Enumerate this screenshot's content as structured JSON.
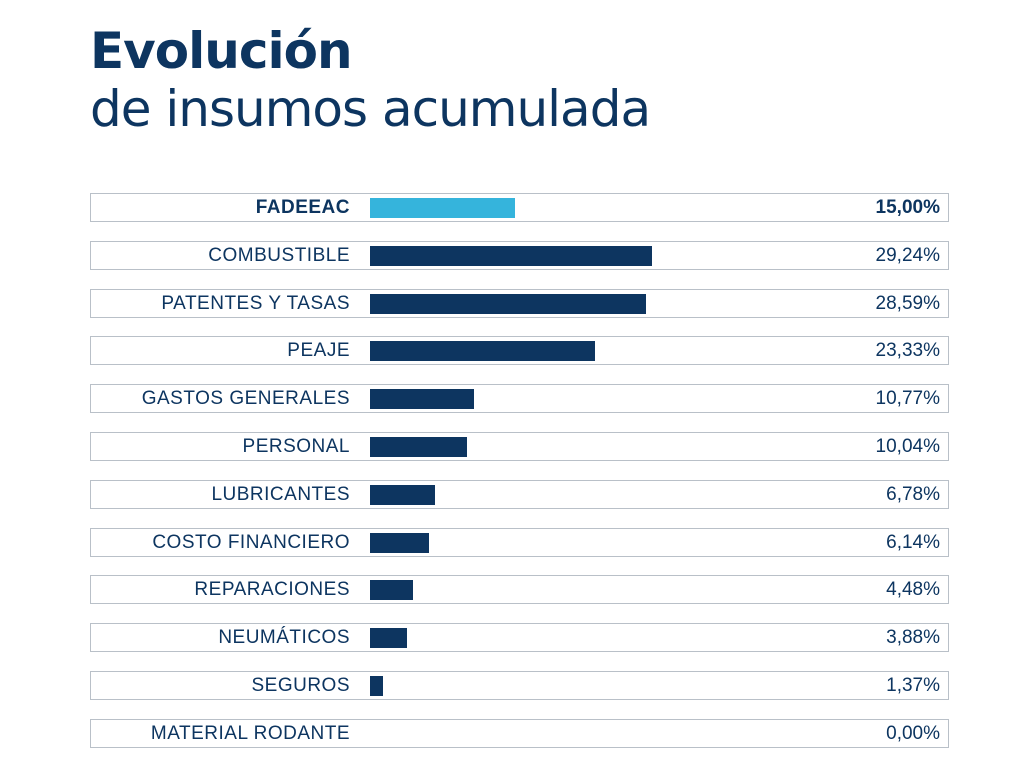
{
  "title": {
    "line1": "Evolución",
    "line2": "de insumos acumulada"
  },
  "chart_data": {
    "type": "bar",
    "orientation": "horizontal",
    "title": "Evolución de insumos acumulada",
    "categories": [
      "FADEEAC",
      "COMBUSTIBLE",
      "PATENTES Y TASAS",
      "PEAJE",
      "GASTOS GENERALES",
      "PERSONAL",
      "LUBRICANTES",
      "COSTO FINANCIERO",
      "REPARACIONES",
      "NEUMÁTICOS",
      "SEGUROS",
      "MATERIAL RODANTE"
    ],
    "values": [
      15.0,
      29.24,
      28.59,
      23.33,
      10.77,
      10.04,
      6.78,
      6.14,
      4.48,
      3.88,
      1.37,
      0.0
    ],
    "value_labels": [
      "15,00%",
      "29,24%",
      "28,59%",
      "23,33%",
      "10,77%",
      "10,04%",
      "6,78%",
      "6,14%",
      "4,48%",
      "3,88%",
      "1,37%",
      "0,00%"
    ],
    "highlight_index": 0,
    "colors": {
      "highlight": "#35b4dc",
      "default": "#0d3560"
    },
    "grid": false
  }
}
